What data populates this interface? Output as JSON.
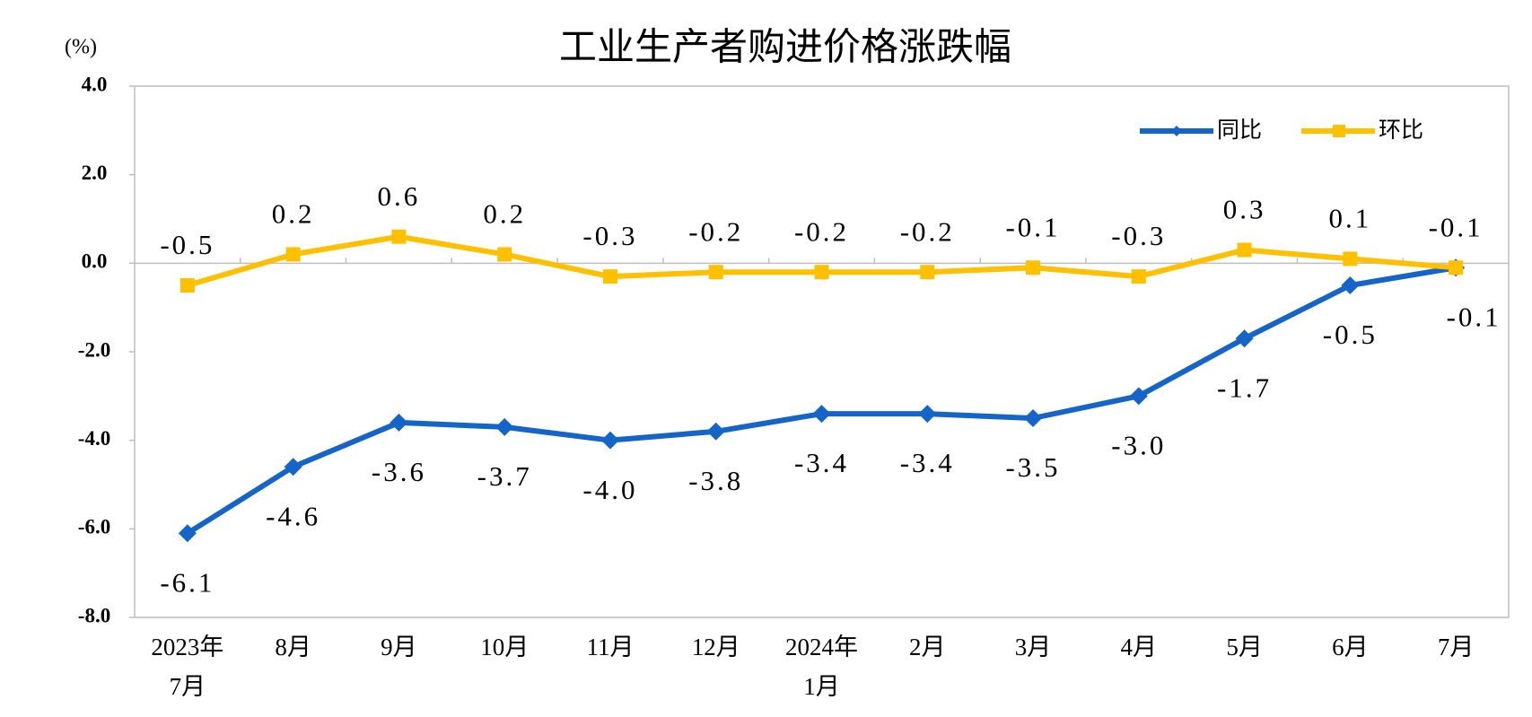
{
  "chart_data": {
    "type": "line",
    "title": "工业生产者购进价格涨跌幅",
    "y_label": "(%)",
    "categories": [
      "2023年\n7月",
      "8月",
      "9月",
      "10月",
      "11月",
      "12月",
      "2024年\n1月",
      "2月",
      "3月",
      "4月",
      "5月",
      "6月",
      "7月"
    ],
    "series": [
      {
        "name": "同比",
        "color": "#1565c8",
        "marker": "diamond",
        "values": [
          -6.1,
          -4.6,
          -3.6,
          -3.7,
          -4.0,
          -3.8,
          -3.4,
          -3.4,
          -3.5,
          -3.0,
          -1.7,
          -0.5,
          -0.1
        ],
        "value_labels": [
          "-6.1",
          "-4.6",
          "-3.6",
          "-3.7",
          "-4.0",
          "-3.8",
          "-3.4",
          "-3.4",
          "-3.5",
          "-3.0",
          "-1.7",
          "-0.5",
          "-0.1"
        ]
      },
      {
        "name": "环比",
        "color": "#ffc000",
        "marker": "square",
        "values": [
          -0.5,
          0.2,
          0.6,
          0.2,
          -0.3,
          -0.2,
          -0.2,
          -0.2,
          -0.1,
          -0.3,
          0.3,
          0.1,
          -0.1
        ],
        "value_labels": [
          "-0.5",
          "0.2",
          "0.6",
          "0.2",
          "-0.3",
          "-0.2",
          "-0.2",
          "-0.2",
          "-0.1",
          "-0.3",
          "0.3",
          "0.1",
          "-0.1"
        ]
      }
    ],
    "ylim": [
      -8,
      4
    ],
    "yticks": [
      {
        "value": -8,
        "label": "-8.0"
      },
      {
        "value": -6,
        "label": "-6.0"
      },
      {
        "value": -4,
        "label": "-4.0"
      },
      {
        "value": -2,
        "label": "-2.0"
      },
      {
        "value": 0,
        "label": "0.0"
      },
      {
        "value": 2,
        "label": "2.0"
      },
      {
        "value": 4,
        "label": "4.0"
      }
    ],
    "grid": false,
    "legend": "upper right"
  }
}
